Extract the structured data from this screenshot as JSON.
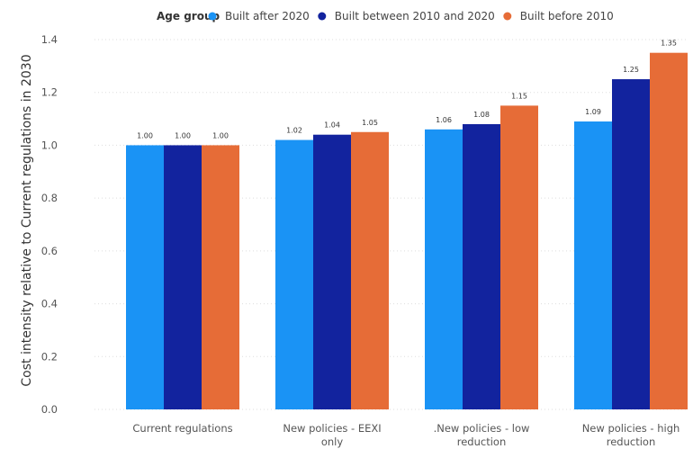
{
  "chart_data": {
    "type": "bar",
    "legend_title": "Age group",
    "legend_position": "top",
    "ylabel": "Cost intensity relative to Current regulations in 2030",
    "xlabel": "",
    "ylim": [
      0,
      1.4
    ],
    "yticks": [
      "0.0",
      "0.2",
      "0.4",
      "0.6",
      "0.8",
      "1.0",
      "1.2",
      "1.4"
    ],
    "grid": true,
    "categories": [
      [
        "Current regulations"
      ],
      [
        "New policies - EEXI",
        "only"
      ],
      [
        ".New policies - low",
        "reduction"
      ],
      [
        "New policies - high",
        "reduction"
      ]
    ],
    "series": [
      {
        "name": "Built after 2020",
        "color": "#1A93F5",
        "values": [
          1.0,
          1.02,
          1.06,
          1.09
        ],
        "labels": [
          "1.00",
          "1.02",
          "1.06",
          "1.09"
        ]
      },
      {
        "name": "Built between 2010 and 2020",
        "color": "#12239E",
        "values": [
          1.0,
          1.04,
          1.08,
          1.25
        ],
        "labels": [
          "1.00",
          "1.04",
          "1.08",
          "1.25"
        ]
      },
      {
        "name": "Built before 2010",
        "color": "#E66C37",
        "values": [
          1.0,
          1.05,
          1.15,
          1.35
        ],
        "labels": [
          "1.00",
          "1.05",
          "1.15",
          "1.35"
        ]
      }
    ]
  }
}
